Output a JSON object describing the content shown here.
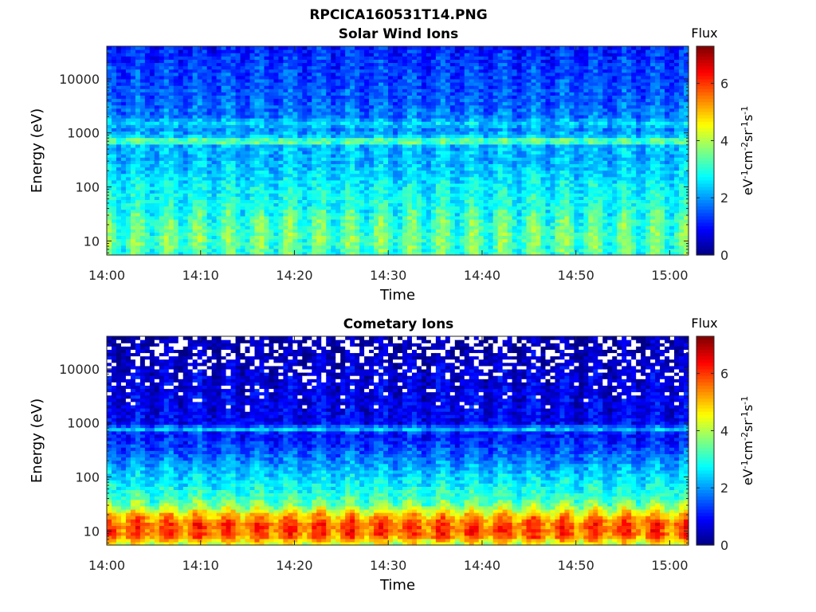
{
  "figure": {
    "title": "RPCICA160531T14.PNG",
    "colors": {
      "axis": "#262626",
      "background": "#ffffff",
      "missing": "#ffffff"
    }
  },
  "colormap": "jet",
  "chart_data": [
    {
      "type": "heatmap",
      "title": "Solar Wind Ions",
      "xlabel": "Time",
      "ylabel": "Energy (eV)",
      "x_ticks": [
        "14:00",
        "14:10",
        "14:20",
        "14:30",
        "14:40",
        "14:50",
        "15:00"
      ],
      "x_range": [
        "14:00",
        "15:02"
      ],
      "y_scale": "log",
      "y_ticks": [
        "10",
        "100",
        "1000",
        "10000"
      ],
      "y_range": [
        5.5,
        40000
      ],
      "colorbar": {
        "title": "Flux",
        "label": "eV-1cm-2sr-1s-1",
        "ticks": [
          "0",
          "2",
          "4",
          "6"
        ],
        "range": [
          0,
          7.3
        ]
      },
      "scan_period_min": 3.25,
      "profile": {
        "energy_eV": [
          6,
          10,
          15,
          25,
          40,
          70,
          100,
          200,
          400,
          600,
          700,
          900,
          1200,
          1500,
          2000,
          4000,
          10000,
          20000,
          40000
        ],
        "log_flux": [
          3.2,
          3.4,
          3.3,
          3.2,
          2.9,
          2.8,
          2.7,
          2.4,
          2.2,
          2.3,
          3.8,
          2.2,
          1.9,
          2.5,
          1.8,
          1.6,
          1.4,
          1.3,
          1.1
        ]
      },
      "missing_fraction_high_energy": 0.0
    },
    {
      "type": "heatmap",
      "title": "Cometary Ions",
      "xlabel": "Time",
      "ylabel": "Energy (eV)",
      "x_ticks": [
        "14:00",
        "14:10",
        "14:20",
        "14:30",
        "14:40",
        "14:50",
        "15:00"
      ],
      "x_range": [
        "14:00",
        "15:02"
      ],
      "y_scale": "log",
      "y_ticks": [
        "10",
        "100",
        "1000",
        "10000"
      ],
      "y_range": [
        5.5,
        40000
      ],
      "colorbar": {
        "title": "Flux",
        "label": "eV-1cm-2sr-1s-1",
        "ticks": [
          "0",
          "2",
          "4",
          "6"
        ],
        "range": [
          0,
          7.3
        ]
      },
      "scan_period_min": 3.25,
      "profile": {
        "energy_eV": [
          6,
          8,
          10,
          14,
          20,
          30,
          50,
          100,
          200,
          400,
          650,
          750,
          1000,
          2000,
          5000,
          10000,
          20000,
          40000
        ],
        "log_flux": [
          4.4,
          5.6,
          5.8,
          5.7,
          5.0,
          3.6,
          3.0,
          2.5,
          1.9,
          1.3,
          1.0,
          2.4,
          0.9,
          0.8,
          0.7,
          0.6,
          0.4,
          0.3
        ]
      },
      "missing_fraction_high_energy": 0.3
    }
  ]
}
